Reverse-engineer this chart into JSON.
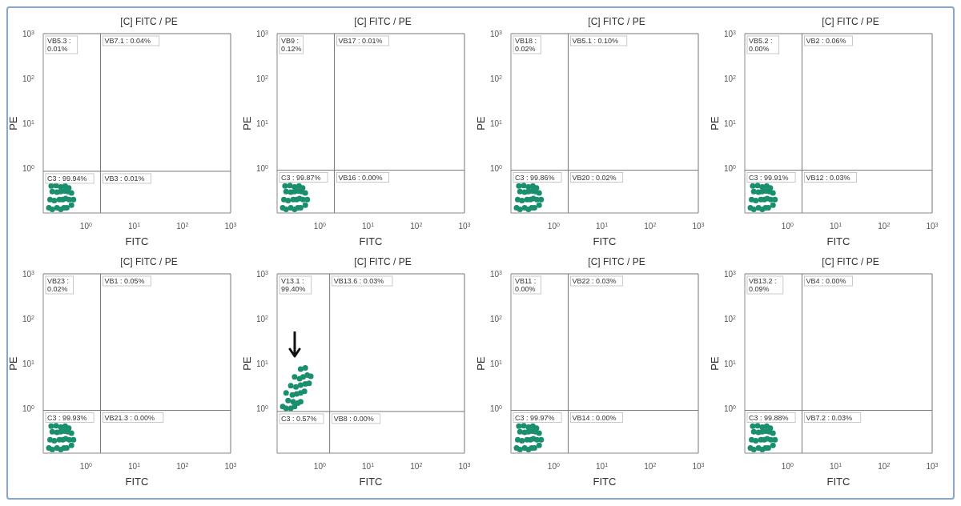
{
  "chart_data": [
    {
      "type": "scatter",
      "title": "[C] FITC / PE",
      "xlabel": "FITC",
      "ylabel": "PE",
      "log": "xy",
      "marker": "circle",
      "color": "#1a8f6e",
      "xlim": [
        0.13,
        1000
      ],
      "ylim": [
        0.1,
        1000
      ],
      "xticks": [
        {
          "value": 1,
          "label": "10$^{0}$"
        },
        {
          "value": 10,
          "label": "10$^{1}$"
        },
        {
          "value": 100,
          "label": "10$^{2}$"
        },
        {
          "value": 1000,
          "label": "10$^{3}$"
        }
      ],
      "yticks": [
        {
          "value": 1,
          "label": "10$^{0}$"
        },
        {
          "value": 10,
          "label": "10$^{1}$"
        },
        {
          "value": 100,
          "label": "10$^{2}$"
        },
        {
          "value": 1000,
          "label": "10$^{3}$"
        }
      ],
      "x": [
        0.17,
        0.2,
        0.25,
        0.3,
        0.35,
        0.4,
        0.5,
        0.55,
        0.18,
        0.22,
        0.28,
        0.33,
        0.38,
        0.45,
        0.2,
        0.25,
        0.3,
        0.36,
        0.42,
        0.5,
        0.19,
        0.24,
        0.3,
        0.37,
        0.44
      ],
      "values": [
        0.13,
        0.12,
        0.13,
        0.12,
        0.13,
        0.13,
        0.15,
        0.2,
        0.2,
        0.19,
        0.2,
        0.2,
        0.21,
        0.2,
        0.3,
        0.29,
        0.3,
        0.31,
        0.3,
        0.28,
        0.4,
        0.41,
        0.38,
        0.4,
        0.36
      ],
      "ref_lines": [
        {
          "axis": "x",
          "value": 2
        },
        {
          "axis": "y",
          "value": 0.85
        }
      ],
      "annotations": [
        "VB5.3 : 0.01%",
        "VB7.1 : 0.04%",
        "C3 : 99.94%",
        "VB3 : 0.01%"
      ]
    },
    {
      "type": "scatter",
      "title": "[C] FITC / PE",
      "xlabel": "FITC",
      "ylabel": "PE",
      "log": "xy",
      "marker": "circle",
      "color": "#1a8f6e",
      "xlim": [
        0.13,
        1000
      ],
      "ylim": [
        0.1,
        1000
      ],
      "xticks": [
        {
          "value": 1,
          "label": "10$^{0}$"
        },
        {
          "value": 10,
          "label": "10$^{1}$"
        },
        {
          "value": 100,
          "label": "10$^{2}$"
        },
        {
          "value": 1000,
          "label": "10$^{3}$"
        }
      ],
      "yticks": [
        {
          "value": 1,
          "label": "10$^{0}$"
        },
        {
          "value": 10,
          "label": "10$^{1}$"
        },
        {
          "value": 100,
          "label": "10$^{2}$"
        },
        {
          "value": 1000,
          "label": "10$^{3}$"
        }
      ],
      "x": [
        0.17,
        0.2,
        0.25,
        0.3,
        0.35,
        0.4,
        0.5,
        0.55,
        0.18,
        0.22,
        0.28,
        0.33,
        0.38,
        0.45,
        0.2,
        0.25,
        0.3,
        0.36,
        0.42,
        0.5,
        0.19,
        0.24,
        0.3,
        0.37,
        0.44
      ],
      "values": [
        0.13,
        0.12,
        0.13,
        0.12,
        0.13,
        0.13,
        0.15,
        0.2,
        0.2,
        0.19,
        0.2,
        0.2,
        0.21,
        0.2,
        0.3,
        0.29,
        0.3,
        0.31,
        0.3,
        0.28,
        0.4,
        0.41,
        0.38,
        0.4,
        0.36
      ],
      "ref_lines": [
        {
          "axis": "x",
          "value": 2
        },
        {
          "axis": "y",
          "value": 0.9
        }
      ],
      "annotations": [
        "VB9 : 0.12%",
        "VB17 : 0.01%",
        "C3 : 99.87%",
        "VB16 : 0.00%"
      ]
    },
    {
      "type": "scatter",
      "title": "[C] FITC / PE",
      "xlabel": "FITC",
      "ylabel": "PE",
      "log": "xy",
      "marker": "circle",
      "color": "#1a8f6e",
      "xlim": [
        0.13,
        1000
      ],
      "ylim": [
        0.1,
        1000
      ],
      "xticks": [
        {
          "value": 1,
          "label": "10$^{0}$"
        },
        {
          "value": 10,
          "label": "10$^{1}$"
        },
        {
          "value": 100,
          "label": "10$^{2}$"
        },
        {
          "value": 1000,
          "label": "10$^{3}$"
        }
      ],
      "yticks": [
        {
          "value": 1,
          "label": "10$^{0}$"
        },
        {
          "value": 10,
          "label": "10$^{1}$"
        },
        {
          "value": 100,
          "label": "10$^{2}$"
        },
        {
          "value": 1000,
          "label": "10$^{3}$"
        }
      ],
      "x": [
        0.17,
        0.2,
        0.25,
        0.3,
        0.35,
        0.4,
        0.5,
        0.55,
        0.18,
        0.22,
        0.28,
        0.33,
        0.38,
        0.45,
        0.2,
        0.25,
        0.3,
        0.36,
        0.42,
        0.5,
        0.19,
        0.24,
        0.3,
        0.37,
        0.44
      ],
      "values": [
        0.13,
        0.12,
        0.13,
        0.12,
        0.13,
        0.13,
        0.15,
        0.2,
        0.2,
        0.19,
        0.2,
        0.2,
        0.21,
        0.2,
        0.3,
        0.29,
        0.3,
        0.31,
        0.3,
        0.28,
        0.4,
        0.41,
        0.38,
        0.4,
        0.36
      ],
      "ref_lines": [
        {
          "axis": "x",
          "value": 2
        },
        {
          "axis": "y",
          "value": 0.9
        }
      ],
      "annotations": [
        "VB18 : 0.02%",
        "VB5.1 : 0.10%",
        "C3 : 99.86%",
        "VB20 : 0.02%"
      ]
    },
    {
      "type": "scatter",
      "title": "[C] FITC / PE",
      "xlabel": "FITC",
      "ylabel": "PE",
      "log": "xy",
      "marker": "circle",
      "color": "#1a8f6e",
      "xlim": [
        0.13,
        1000
      ],
      "ylim": [
        0.1,
        1000
      ],
      "xticks": [
        {
          "value": 1,
          "label": "10$^{0}$"
        },
        {
          "value": 10,
          "label": "10$^{1}$"
        },
        {
          "value": 100,
          "label": "10$^{2}$"
        },
        {
          "value": 1000,
          "label": "10$^{3}$"
        }
      ],
      "yticks": [
        {
          "value": 1,
          "label": "10$^{0}$"
        },
        {
          "value": 10,
          "label": "10$^{1}$"
        },
        {
          "value": 100,
          "label": "10$^{2}$"
        },
        {
          "value": 1000,
          "label": "10$^{3}$"
        }
      ],
      "x": [
        0.17,
        0.2,
        0.25,
        0.3,
        0.35,
        0.4,
        0.5,
        0.55,
        0.18,
        0.22,
        0.28,
        0.33,
        0.38,
        0.45,
        0.2,
        0.25,
        0.3,
        0.36,
        0.42,
        0.5,
        0.19,
        0.24,
        0.3,
        0.37,
        0.44
      ],
      "values": [
        0.13,
        0.12,
        0.13,
        0.12,
        0.13,
        0.13,
        0.15,
        0.2,
        0.2,
        0.19,
        0.2,
        0.2,
        0.21,
        0.2,
        0.3,
        0.29,
        0.3,
        0.31,
        0.3,
        0.28,
        0.4,
        0.41,
        0.38,
        0.4,
        0.36
      ],
      "ref_lines": [
        {
          "axis": "x",
          "value": 2
        },
        {
          "axis": "y",
          "value": 0.9
        }
      ],
      "annotations": [
        "VB5.2 : 0.00%",
        "VB2 : 0.06%",
        "C3 : 99.91%",
        "VB12 : 0.03%"
      ]
    },
    {
      "type": "scatter",
      "title": "[C] FITC / PE",
      "xlabel": "FITC",
      "ylabel": "PE",
      "log": "xy",
      "marker": "circle",
      "color": "#1a8f6e",
      "xlim": [
        0.13,
        1000
      ],
      "ylim": [
        0.1,
        1000
      ],
      "xticks": [
        {
          "value": 1,
          "label": "10$^{0}$"
        },
        {
          "value": 10,
          "label": "10$^{1}$"
        },
        {
          "value": 100,
          "label": "10$^{2}$"
        },
        {
          "value": 1000,
          "label": "10$^{3}$"
        }
      ],
      "yticks": [
        {
          "value": 1,
          "label": "10$^{0}$"
        },
        {
          "value": 10,
          "label": "10$^{1}$"
        },
        {
          "value": 100,
          "label": "10$^{2}$"
        },
        {
          "value": 1000,
          "label": "10$^{3}$"
        }
      ],
      "x": [
        0.17,
        0.2,
        0.25,
        0.3,
        0.35,
        0.4,
        0.5,
        0.55,
        0.18,
        0.22,
        0.28,
        0.33,
        0.38,
        0.45,
        0.2,
        0.25,
        0.3,
        0.36,
        0.42,
        0.5,
        0.19,
        0.24,
        0.3,
        0.37,
        0.44
      ],
      "values": [
        0.13,
        0.12,
        0.13,
        0.12,
        0.13,
        0.13,
        0.15,
        0.2,
        0.2,
        0.19,
        0.2,
        0.2,
        0.21,
        0.2,
        0.3,
        0.29,
        0.3,
        0.31,
        0.3,
        0.28,
        0.4,
        0.41,
        0.38,
        0.4,
        0.36
      ],
      "ref_lines": [
        {
          "axis": "x",
          "value": 2
        },
        {
          "axis": "y",
          "value": 0.9
        }
      ],
      "annotations": [
        "VB23 : 0.02%",
        "VB1 : 0.05%",
        "C3 : 99.93%",
        "VB21.3 : 0.00%"
      ]
    },
    {
      "type": "scatter",
      "title": "[C] FITC / PE",
      "xlabel": "FITC",
      "ylabel": "PE",
      "log": "xy",
      "marker": "circle",
      "color": "#1a8f6e",
      "xlim": [
        0.13,
        1000
      ],
      "ylim": [
        0.1,
        1000
      ],
      "xticks": [
        {
          "value": 1,
          "label": "10$^{0}$"
        },
        {
          "value": 10,
          "label": "10$^{1}$"
        },
        {
          "value": 100,
          "label": "10$^{2}$"
        },
        {
          "value": 1000,
          "label": "10$^{3}$"
        }
      ],
      "yticks": [
        {
          "value": 1,
          "label": "10$^{0}$"
        },
        {
          "value": 10,
          "label": "10$^{1}$"
        },
        {
          "value": 100,
          "label": "10$^{2}$"
        },
        {
          "value": 1000,
          "label": "10$^{3}$"
        }
      ],
      "x": [
        0.17,
        0.2,
        0.25,
        0.3,
        0.22,
        0.28,
        0.35,
        0.4,
        0.2,
        0.27,
        0.33,
        0.4,
        0.48,
        0.25,
        0.32,
        0.4,
        0.5,
        0.6,
        0.3,
        0.38,
        0.45,
        0.55,
        0.65,
        0.4,
        0.5
      ],
      "values": [
        1.1,
        1.0,
        1.0,
        1.1,
        1.5,
        1.4,
        1.3,
        1.4,
        2.2,
        2.0,
        2.1,
        2.2,
        2.4,
        3.2,
        3.0,
        3.3,
        3.5,
        3.6,
        5,
        4.6,
        5,
        5.5,
        5.2,
        7.5,
        8
      ],
      "ref_lines": [
        {
          "axis": "x",
          "value": 1.6
        },
        {
          "axis": "y",
          "value": 0.85
        }
      ],
      "annotations": [
        "V13.1 : 99.40%",
        "VB13.6 : 0.03%",
        "C3 : 0.57%",
        "VB8 : 0.00%"
      ]
    },
    {
      "type": "scatter",
      "title": "[C] FITC / PE",
      "xlabel": "FITC",
      "ylabel": "PE",
      "log": "xy",
      "marker": "circle",
      "color": "#1a8f6e",
      "xlim": [
        0.13,
        1000
      ],
      "ylim": [
        0.1,
        1000
      ],
      "xticks": [
        {
          "value": 1,
          "label": "10$^{0}$"
        },
        {
          "value": 10,
          "label": "10$^{1}$"
        },
        {
          "value": 100,
          "label": "10$^{2}$"
        },
        {
          "value": 1000,
          "label": "10$^{3}$"
        }
      ],
      "yticks": [
        {
          "value": 1,
          "label": "10$^{0}$"
        },
        {
          "value": 10,
          "label": "10$^{1}$"
        },
        {
          "value": 100,
          "label": "10$^{2}$"
        },
        {
          "value": 1000,
          "label": "10$^{3}$"
        }
      ],
      "x": [
        0.17,
        0.2,
        0.25,
        0.3,
        0.35,
        0.4,
        0.5,
        0.55,
        0.18,
        0.22,
        0.28,
        0.33,
        0.38,
        0.45,
        0.2,
        0.25,
        0.3,
        0.36,
        0.42,
        0.5,
        0.19,
        0.24,
        0.3,
        0.37,
        0.44
      ],
      "values": [
        0.13,
        0.12,
        0.13,
        0.12,
        0.13,
        0.13,
        0.15,
        0.2,
        0.2,
        0.19,
        0.2,
        0.2,
        0.21,
        0.2,
        0.3,
        0.29,
        0.3,
        0.31,
        0.3,
        0.28,
        0.4,
        0.41,
        0.38,
        0.4,
        0.36
      ],
      "ref_lines": [
        {
          "axis": "x",
          "value": 2
        },
        {
          "axis": "y",
          "value": 0.9
        }
      ],
      "annotations": [
        "VB11 : 0.00%",
        "VB22 : 0.03%",
        "C3 : 99.97%",
        "VB14 : 0.00%"
      ]
    },
    {
      "type": "scatter",
      "title": "[C] FITC / PE",
      "xlabel": "FITC",
      "ylabel": "PE",
      "log": "xy",
      "marker": "circle",
      "color": "#1a8f6e",
      "xlim": [
        0.13,
        1000
      ],
      "ylim": [
        0.1,
        1000
      ],
      "xticks": [
        {
          "value": 1,
          "label": "10$^{0}$"
        },
        {
          "value": 10,
          "label": "10$^{1}$"
        },
        {
          "value": 100,
          "label": "10$^{2}$"
        },
        {
          "value": 1000,
          "label": "10$^{3}$"
        }
      ],
      "yticks": [
        {
          "value": 1,
          "label": "10$^{0}$"
        },
        {
          "value": 10,
          "label": "10$^{1}$"
        },
        {
          "value": 100,
          "label": "10$^{2}$"
        },
        {
          "value": 1000,
          "label": "10$^{3}$"
        }
      ],
      "x": [
        0.17,
        0.2,
        0.25,
        0.3,
        0.35,
        0.4,
        0.5,
        0.55,
        0.18,
        0.22,
        0.28,
        0.33,
        0.38,
        0.45,
        0.2,
        0.25,
        0.3,
        0.36,
        0.42,
        0.5,
        0.19,
        0.24,
        0.3,
        0.37,
        0.44
      ],
      "values": [
        0.13,
        0.12,
        0.13,
        0.12,
        0.13,
        0.13,
        0.15,
        0.2,
        0.2,
        0.19,
        0.2,
        0.2,
        0.21,
        0.2,
        0.3,
        0.29,
        0.3,
        0.31,
        0.3,
        0.28,
        0.4,
        0.41,
        0.38,
        0.4,
        0.36
      ],
      "ref_lines": [
        {
          "axis": "x",
          "value": 2
        },
        {
          "axis": "y",
          "value": 0.9
        }
      ],
      "annotations": [
        "VB13.2 : 0.09%",
        "VB4 : 0.00%",
        "C3 : 99.88%",
        "VB7.2 : 0.03%"
      ]
    }
  ]
}
